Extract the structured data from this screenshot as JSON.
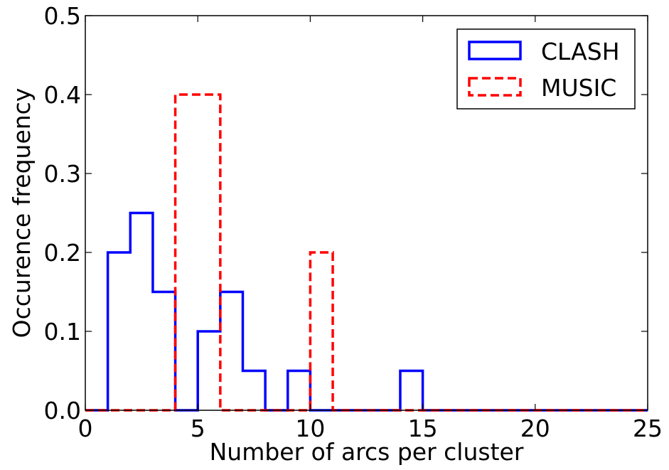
{
  "chart_data": {
    "type": "histogram",
    "xlabel": "Number of arcs per cluster",
    "ylabel": "Occurence frequency",
    "xlim": [
      0,
      25
    ],
    "ylim": [
      0,
      0.5
    ],
    "xticks": [
      "0",
      "5",
      "10",
      "15",
      "20",
      "25"
    ],
    "yticks": [
      "0.0",
      "0.1",
      "0.2",
      "0.3",
      "0.4",
      "0.5"
    ],
    "grid": false,
    "legend_position": "top-right",
    "bin_width": 1,
    "series": [
      {
        "name": "CLASH",
        "color": "#0000ff",
        "linestyle": "solid",
        "bins": [
          {
            "x": 1,
            "value": 0.2
          },
          {
            "x": 2,
            "value": 0.25
          },
          {
            "x": 3,
            "value": 0.15
          },
          {
            "x": 5,
            "value": 0.1
          },
          {
            "x": 6,
            "value": 0.15
          },
          {
            "x": 7,
            "value": 0.05
          },
          {
            "x": 9,
            "value": 0.05
          },
          {
            "x": 14,
            "value": 0.05
          }
        ]
      },
      {
        "name": "MUSIC",
        "color": "#ff0000",
        "linestyle": "dashed",
        "bins": [
          {
            "x": 4,
            "value": 0.4
          },
          {
            "x": 5,
            "value": 0.4
          },
          {
            "x": 10,
            "value": 0.2
          }
        ]
      }
    ]
  }
}
